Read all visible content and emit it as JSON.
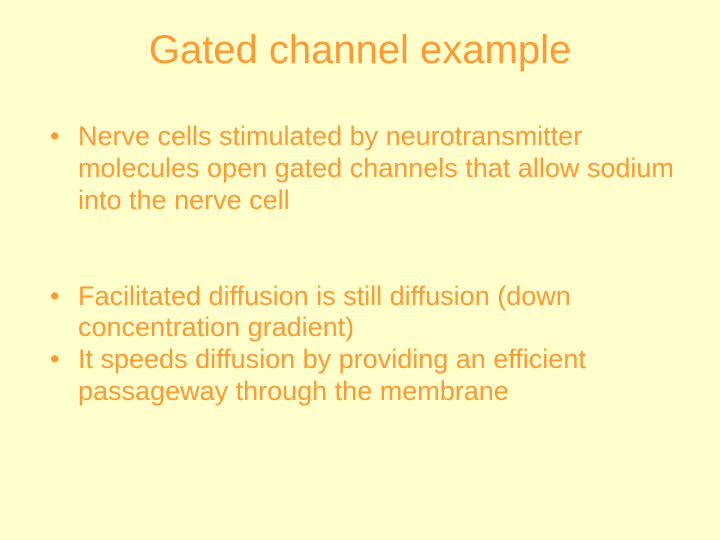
{
  "slide": {
    "title": "Gated channel example",
    "background_color": "#ffffcc",
    "title_color": "#ff9933",
    "body_color": "#ff9933",
    "title_fontsize": 40,
    "body_fontsize": 27,
    "bullets": [
      {
        "text": "Nerve cells stimulated by neurotransmitter molecules open gated channels that allow sodium into the nerve cell"
      },
      {
        "text": "Facilitated diffusion is still diffusion (down concentration gradient)"
      },
      {
        "text": "It speeds diffusion by providing an efficient passageway through the membrane"
      }
    ],
    "group_break_after_index": 0
  }
}
